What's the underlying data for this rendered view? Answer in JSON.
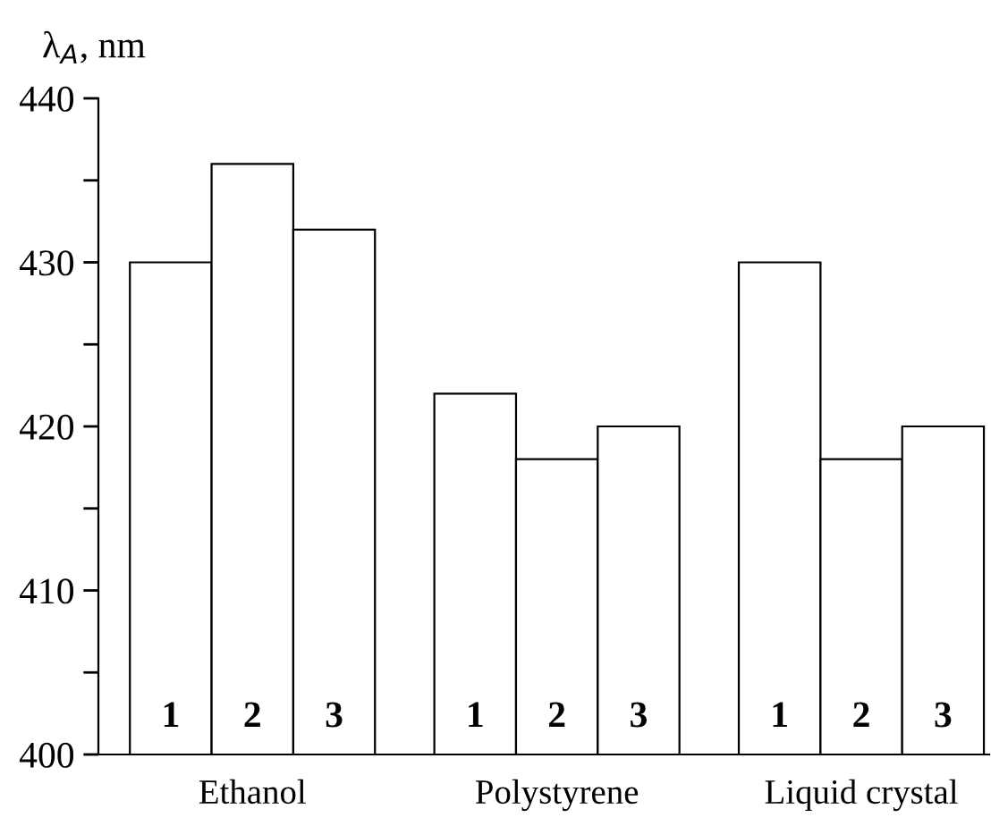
{
  "chart_data": {
    "type": "bar",
    "ylabel": "λ$_{A}$, nm",
    "categories": [
      "Ethanol",
      "Polystyrene",
      "Liquid crystal"
    ],
    "series": [
      {
        "name": "1",
        "color": "#ffffff",
        "values": [
          430,
          422,
          430
        ]
      },
      {
        "name": "2",
        "color": "#ffffff",
        "values": [
          436,
          418,
          418
        ]
      },
      {
        "name": "3",
        "color": "#ffffff",
        "values": [
          432,
          420,
          420
        ]
      }
    ],
    "ylim": [
      400,
      440
    ],
    "yticks": [
      400,
      {
        "value": 405,
        "label": null
      },
      410,
      {
        "value": 415,
        "label": null
      },
      420,
      {
        "value": 425,
        "label": null
      },
      430,
      {
        "value": 435,
        "label": null
      },
      440
    ],
    "grid": false,
    "legend": false
  }
}
